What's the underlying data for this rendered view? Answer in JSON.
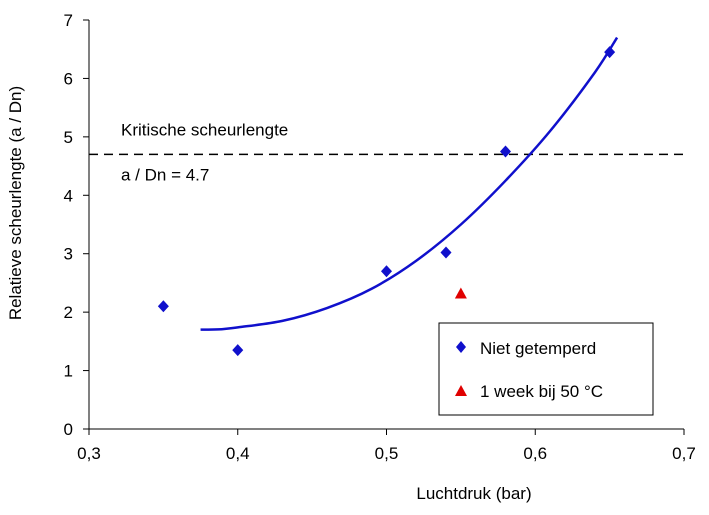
{
  "chart_data": {
    "type": "scatter",
    "title": "",
    "xlabel": "Luchtdruk (bar)",
    "ylabel": "Relatieve scheurlengte (a / Dn)",
    "xlim": [
      0.3,
      0.7
    ],
    "ylim": [
      0,
      7
    ],
    "x_ticks": [
      0.3,
      0.4,
      0.5,
      0.6,
      0.7
    ],
    "x_tick_labels": [
      "0,3",
      "0,4",
      "0,5",
      "0,6",
      "0,7"
    ],
    "y_ticks": [
      0,
      1,
      2,
      3,
      4,
      5,
      6,
      7
    ],
    "y_tick_labels": [
      "0",
      "1",
      "2",
      "3",
      "4",
      "5",
      "6",
      "7"
    ],
    "grid": false,
    "legend_position": "bottom-right",
    "series": [
      {
        "name": "Niet getemperd",
        "marker": "diamond",
        "color": "#1010CC",
        "points": [
          {
            "x": 0.35,
            "y": 2.1
          },
          {
            "x": 0.4,
            "y": 1.35
          },
          {
            "x": 0.5,
            "y": 2.7
          },
          {
            "x": 0.54,
            "y": 3.02
          },
          {
            "x": 0.58,
            "y": 4.75
          },
          {
            "x": 0.65,
            "y": 6.45
          }
        ]
      },
      {
        "name": "1 week bij 50 °C",
        "marker": "triangle",
        "color": "#E00000",
        "points": [
          {
            "x": 0.55,
            "y": 2.32
          }
        ]
      }
    ],
    "trendline": {
      "color": "#1010CC",
      "points": [
        {
          "x": 0.375,
          "y": 1.7
        },
        {
          "x": 0.39,
          "y": 1.71
        },
        {
          "x": 0.4,
          "y": 1.74
        },
        {
          "x": 0.43,
          "y": 1.85
        },
        {
          "x": 0.46,
          "y": 2.07
        },
        {
          "x": 0.49,
          "y": 2.4
        },
        {
          "x": 0.52,
          "y": 2.88
        },
        {
          "x": 0.55,
          "y": 3.5
        },
        {
          "x": 0.58,
          "y": 4.25
        },
        {
          "x": 0.61,
          "y": 5.1
        },
        {
          "x": 0.64,
          "y": 6.1
        },
        {
          "x": 0.655,
          "y": 6.7
        }
      ]
    },
    "reference_line": {
      "y": 4.7,
      "style": "dashed",
      "color": "#000000",
      "label_above": "Kritische scheurlengte",
      "label_below": "a / Dn = 4.7"
    }
  }
}
